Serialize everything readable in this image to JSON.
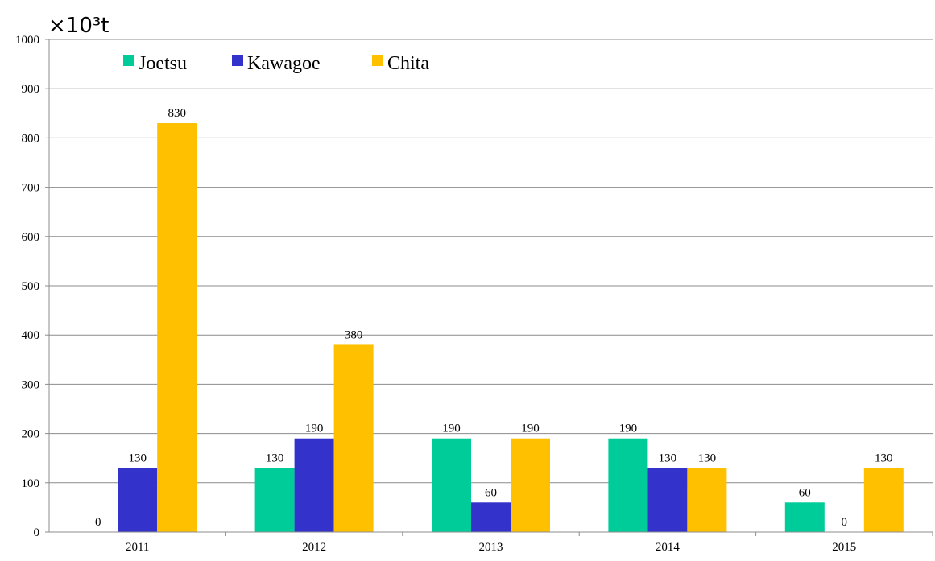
{
  "chart_data": {
    "type": "bar",
    "categories": [
      "2011",
      "2012",
      "2013",
      "2014",
      "2015"
    ],
    "series": [
      {
        "name": "Joetsu",
        "values": [
          0,
          130,
          190,
          190,
          60
        ]
      },
      {
        "name": "Kawagoe",
        "values": [
          130,
          190,
          60,
          130,
          0
        ]
      },
      {
        "name": "Chita",
        "values": [
          830,
          380,
          190,
          130,
          130
        ]
      }
    ],
    "colors": {
      "Joetsu": "#00CC99",
      "Kawagoe": "#3333CC",
      "Chita": "#FFC000"
    },
    "unit_label": "×10³t",
    "title": "",
    "xlabel": "",
    "ylabel": "",
    "ylim": [
      0,
      1000
    ],
    "yticks": [
      "0",
      "100",
      "200",
      "300",
      "400",
      "500",
      "600",
      "700",
      "800",
      "900",
      "1000"
    ],
    "grid": true,
    "legend_position": "top-left",
    "data_labels": true
  }
}
